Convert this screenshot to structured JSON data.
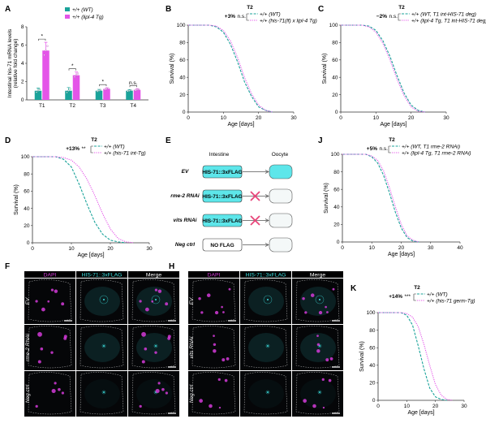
{
  "colors": {
    "wt": "#1aa39a",
    "tg": "#e455e8",
    "dapi": "#d43bd8",
    "his": "#3de0e0",
    "intestine_box": "#5de6ea",
    "cross": "#e8457a"
  },
  "panelA": {
    "label": "A",
    "ylabel_line1": "Intestinal his-71 mRNA levels",
    "ylabel_line2": "(relative fold change)",
    "legend": [
      "+/+ (WT)",
      "+/+ (lipl-4 Tg)"
    ],
    "chart_data": {
      "type": "bar",
      "categories": [
        "T1",
        "T2",
        "T3",
        "T4"
      ],
      "series": [
        {
          "name": "+/+ (WT)",
          "values": [
            1.0,
            1.0,
            1.0,
            1.0
          ],
          "err": [
            0.3,
            0.35,
            0.15,
            0.12
          ]
        },
        {
          "name": "+/+ (lipl-4 Tg)",
          "values": [
            5.4,
            2.7,
            1.2,
            1.1
          ],
          "err": [
            0.9,
            0.35,
            0.12,
            0.12
          ]
        }
      ],
      "ylim": [
        0,
        8
      ],
      "yticks": [
        "0",
        "2",
        "4",
        "6",
        "8"
      ],
      "significance": [
        "*",
        "*",
        "*",
        "n.s."
      ]
    }
  },
  "panelB": {
    "label": "B",
    "period": "T2",
    "stat": "+3%",
    "sig": "n.s.",
    "legend": [
      "+/+ (WT)",
      "+/+ (his-71(lf) x lipl-4 Tg)"
    ],
    "ylabel": "Survival (%)",
    "xlabel": "Age [days]",
    "xticks": [
      "0",
      "10",
      "20",
      "30"
    ],
    "yticks": [
      "0",
      "20",
      "40",
      "60",
      "80",
      "100"
    ],
    "chart_data": {
      "type": "line",
      "xlim": [
        0,
        30
      ],
      "ylim": [
        0,
        100
      ],
      "series": [
        {
          "name": "+/+ (WT)",
          "x": [
            0,
            6,
            8,
            10,
            12,
            14,
            16,
            18,
            20,
            22,
            24
          ],
          "y": [
            100,
            100,
            98,
            92,
            78,
            58,
            35,
            18,
            6,
            2,
            0
          ]
        },
        {
          "name": "+/+ (his-71(lf) x lipl-4 Tg)",
          "x": [
            0,
            6,
            8,
            10,
            12,
            14,
            16,
            18,
            20,
            22,
            24
          ],
          "y": [
            100,
            100,
            99,
            94,
            82,
            63,
            40,
            21,
            8,
            2,
            0
          ]
        }
      ]
    }
  },
  "panelC": {
    "label": "C",
    "period": "T2",
    "stat": "−2%",
    "sig": "n.s.",
    "legend": [
      "+/+ (WT, T1 int-HIS-71 deg)",
      "+/+ (lipl-4 Tg, T1 int-HIS-71 deg)"
    ],
    "ylabel": "Survival (%)",
    "xlabel": "Age [days]",
    "xticks": [
      "0",
      "10",
      "20",
      "30"
    ],
    "yticks": [
      "0",
      "20",
      "40",
      "60",
      "80",
      "100"
    ],
    "chart_data": {
      "type": "line",
      "xlim": [
        0,
        30
      ],
      "ylim": [
        0,
        100
      ],
      "series": [
        {
          "name": "+/+ (WT, T1 int-HIS-71 deg)",
          "x": [
            0,
            6,
            8,
            10,
            12,
            14,
            16,
            18,
            20,
            22,
            24
          ],
          "y": [
            100,
            100,
            99,
            94,
            82,
            64,
            42,
            22,
            8,
            2,
            0
          ]
        },
        {
          "name": "+/+ (lipl-4 Tg, T1 int-HIS-71 deg)",
          "x": [
            0,
            6,
            8,
            10,
            12,
            14,
            16,
            18,
            20,
            22,
            24
          ],
          "y": [
            100,
            100,
            98,
            92,
            79,
            60,
            38,
            19,
            6,
            1,
            0
          ]
        }
      ]
    }
  },
  "panelD": {
    "label": "D",
    "period": "T2",
    "stat": "+13%",
    "sig": "**",
    "legend": [
      "+/+ (WT)",
      "+/+ (his-71 int-Tg)"
    ],
    "ylabel": "Survival (%)",
    "xlabel": "Age [days]",
    "xticks": [
      "0",
      "10",
      "20",
      "30"
    ],
    "yticks": [
      "0",
      "20",
      "40",
      "60",
      "80",
      "100"
    ],
    "chart_data": {
      "type": "line",
      "xlim": [
        0,
        30
      ],
      "ylim": [
        0,
        100
      ],
      "series": [
        {
          "name": "+/+ (WT)",
          "x": [
            0,
            6,
            8,
            10,
            12,
            14,
            16,
            18,
            20,
            22,
            24
          ],
          "y": [
            100,
            100,
            97,
            88,
            68,
            45,
            24,
            10,
            3,
            1,
            0
          ]
        },
        {
          "name": "+/+ (his-71 int-Tg)",
          "x": [
            0,
            6,
            8,
            10,
            12,
            14,
            16,
            18,
            20,
            22,
            24,
            26
          ],
          "y": [
            100,
            100,
            99,
            96,
            88,
            74,
            55,
            34,
            16,
            5,
            1,
            0
          ]
        }
      ]
    }
  },
  "panelE": {
    "label": "E",
    "col_intestine": "Intestine",
    "col_oocyte": "Oocyte",
    "rows": [
      {
        "name": "EV",
        "box": "HIS-71::3xFLAG",
        "flag": true,
        "blocked": false
      },
      {
        "name": "rme-2 RNAi",
        "box": "HIS-71::3xFLAG",
        "flag": true,
        "blocked": true
      },
      {
        "name": "vits RNAi",
        "box": "HIS-71::3xFLAG",
        "flag": true,
        "blocked": true
      },
      {
        "name": "Neg ctrl",
        "box": "NO FLAG",
        "flag": false,
        "blocked": false
      }
    ]
  },
  "panelJ": {
    "label": "J",
    "period": "T2",
    "stat": "+5%",
    "sig": "n.s.",
    "legend": [
      "+/+ (WT, T1 rme-2 RNAi)",
      "+/+ (lipl-4 Tg, T1 rme-2 RNAi)"
    ],
    "ylabel": "Survival (%)",
    "xlabel": "Age [days]",
    "xticks": [
      "0",
      "10",
      "20",
      "30",
      "40"
    ],
    "yticks": [
      "0",
      "20",
      "40",
      "60",
      "80",
      "100"
    ],
    "chart_data": {
      "type": "line",
      "xlim": [
        0,
        40
      ],
      "ylim": [
        0,
        100
      ],
      "series": [
        {
          "name": "+/+ (WT, T1 rme-2 RNAi)",
          "x": [
            0,
            8,
            10,
            12,
            14,
            16,
            18,
            20,
            22,
            24,
            26
          ],
          "y": [
            100,
            100,
            97,
            90,
            76,
            56,
            34,
            16,
            5,
            1,
            0
          ]
        },
        {
          "name": "+/+ (lipl-4 Tg, T1 rme-2 RNAi)",
          "x": [
            0,
            8,
            10,
            12,
            14,
            16,
            18,
            20,
            22,
            24,
            26
          ],
          "y": [
            100,
            100,
            98,
            93,
            81,
            62,
            40,
            20,
            7,
            2,
            0
          ]
        }
      ]
    }
  },
  "panelF": {
    "label": "F",
    "cols": [
      "DAPI",
      "HIS-71::3xFLAG",
      "Merge"
    ],
    "rows": [
      "EV",
      "rme-2 RNAi",
      "Neg ctrl"
    ]
  },
  "panelH": {
    "label": "H",
    "cols": [
      "DAPI",
      "HIS-71::3xFLAG",
      "Merge"
    ],
    "rows": [
      "EV",
      "vits RNAi",
      "Neg ctrl"
    ]
  },
  "panelK": {
    "label": "K",
    "period": "T2",
    "stat": "+14%",
    "sig": "***",
    "legend": [
      "+/+ (WT)",
      "+/+ (his-71 germ-Tg)"
    ],
    "ylabel": "Survival (%)",
    "xlabel": "Age [days]",
    "xticks": [
      "0",
      "10",
      "20",
      "30"
    ],
    "yticks": [
      "0",
      "20",
      "40",
      "60",
      "80",
      "100"
    ],
    "chart_data": {
      "type": "line",
      "xlim": [
        0,
        30
      ],
      "ylim": [
        0,
        100
      ],
      "series": [
        {
          "name": "+/+ (WT)",
          "x": [
            0,
            8,
            10,
            12,
            14,
            16,
            18,
            20,
            22,
            24
          ],
          "y": [
            100,
            100,
            97,
            86,
            62,
            36,
            14,
            4,
            1,
            0
          ]
        },
        {
          "name": "+/+ (his-71 germ-Tg)",
          "x": [
            0,
            8,
            10,
            12,
            14,
            16,
            18,
            20,
            22,
            24,
            26
          ],
          "y": [
            100,
            100,
            99,
            95,
            84,
            64,
            40,
            18,
            6,
            1,
            0
          ]
        }
      ]
    }
  }
}
